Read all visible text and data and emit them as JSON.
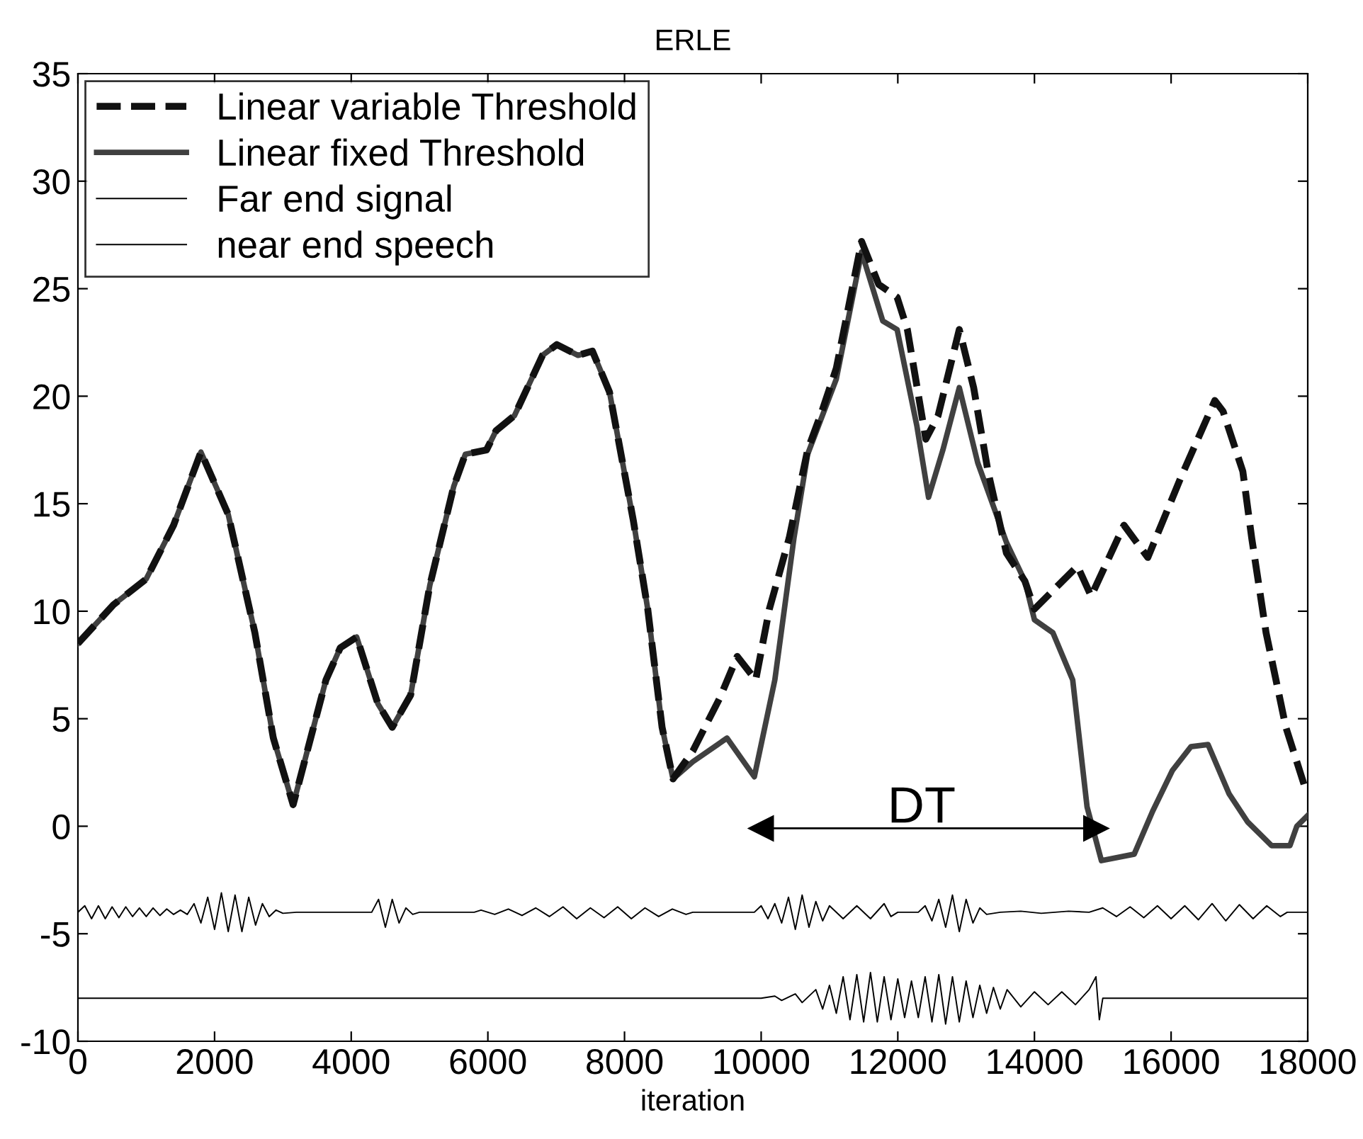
{
  "chart_data": {
    "type": "line",
    "title": "ERLE",
    "xlabel": "iteration",
    "xlim": [
      0,
      18000
    ],
    "ylim": [
      -10,
      35
    ],
    "xticks": [
      0,
      2000,
      4000,
      6000,
      8000,
      10000,
      12000,
      14000,
      16000,
      18000
    ],
    "yticks": [
      -10,
      -5,
      0,
      5,
      10,
      15,
      20,
      25,
      30,
      35
    ],
    "grid": false,
    "legend": "top left",
    "marker": "none",
    "annotations": [
      "DT"
    ],
    "series": [
      {
        "name": "Linear variable Threshold",
        "color": "#111111",
        "line_style": "dashed",
        "x": [
          0,
          520,
          1000,
          1400,
          1800,
          2200,
          2590,
          2860,
          3150,
          3630,
          3840,
          4080,
          4390,
          4600,
          4870,
          5150,
          5500,
          5670,
          5980,
          6120,
          6390,
          6800,
          7010,
          7320,
          7530,
          7780,
          8130,
          8340,
          8550,
          8710,
          9000,
          9400,
          9650,
          9920,
          10120,
          10410,
          10680,
          10890,
          11100,
          11470,
          11720,
          11990,
          12140,
          12410,
          12590,
          12900,
          13110,
          13320,
          13590,
          13860,
          14000,
          14630,
          14830,
          15310,
          15660,
          16140,
          16640,
          16760,
          17050,
          17180,
          17390,
          17680,
          17990
        ],
        "values": [
          8.5,
          10.3,
          11.5,
          14.0,
          17.4,
          14.5,
          9.0,
          4.1,
          1.0,
          6.8,
          8.3,
          8.8,
          5.7,
          4.6,
          6.1,
          11.2,
          15.8,
          17.3,
          17.5,
          18.4,
          19.1,
          21.9,
          22.4,
          21.9,
          22.1,
          20.2,
          14.2,
          10.1,
          4.6,
          2.2,
          3.5,
          6.0,
          7.9,
          6.8,
          10.1,
          13.4,
          17.5,
          19.3,
          21.3,
          27.2,
          25.2,
          24.6,
          23.1,
          18.0,
          19.1,
          23.1,
          20.4,
          16.5,
          12.7,
          11.4,
          10.1,
          12.1,
          10.7,
          14.0,
          12.5,
          16.2,
          19.8,
          19.3,
          16.5,
          13.4,
          9.0,
          4.6,
          1.5
        ]
      },
      {
        "name": "Linear fixed Threshold",
        "color": "#404040",
        "line_style": "solid",
        "x": [
          0,
          520,
          1000,
          1400,
          1800,
          2200,
          2590,
          2860,
          3150,
          3630,
          3840,
          4080,
          4390,
          4600,
          4870,
          5150,
          5500,
          5670,
          5980,
          6120,
          6390,
          6800,
          7010,
          7320,
          7530,
          7780,
          8130,
          8340,
          8550,
          8710,
          9000,
          9500,
          9900,
          10200,
          10480,
          10680,
          11100,
          11470,
          11780,
          11990,
          12280,
          12450,
          12660,
          12900,
          13170,
          13590,
          13860,
          14000,
          14270,
          14560,
          14770,
          14980,
          15460,
          15730,
          16020,
          16290,
          16540,
          16850,
          17120,
          17470,
          17740,
          17840,
          18000
        ],
        "values": [
          8.5,
          10.3,
          11.5,
          14.0,
          17.4,
          14.5,
          9.0,
          4.1,
          1.0,
          6.8,
          8.3,
          8.8,
          5.7,
          4.6,
          6.1,
          11.2,
          15.8,
          17.3,
          17.5,
          18.4,
          19.1,
          21.9,
          22.4,
          21.9,
          22.1,
          20.2,
          14.2,
          10.1,
          4.6,
          2.2,
          3.0,
          4.1,
          2.3,
          6.8,
          13.4,
          17.3,
          20.8,
          26.7,
          23.5,
          23.1,
          18.6,
          15.3,
          17.5,
          20.4,
          16.9,
          13.2,
          11.4,
          9.6,
          9.0,
          6.8,
          0.9,
          -1.6,
          -1.3,
          0.7,
          2.6,
          3.7,
          3.8,
          1.5,
          0.2,
          -0.9,
          -0.9,
          0.0,
          0.5
        ]
      },
      {
        "name": "Far end signal",
        "color": "#000000",
        "line_style": "solid",
        "x": [
          0,
          100,
          200,
          300,
          400,
          500,
          600,
          700,
          800,
          900,
          1000,
          1100,
          1200,
          1300,
          1400,
          1500,
          1600,
          1700,
          1800,
          1900,
          2000,
          2100,
          2200,
          2300,
          2400,
          2500,
          2600,
          2700,
          2800,
          2900,
          3000,
          3200,
          4300,
          4400,
          4500,
          4600,
          4700,
          4800,
          4900,
          5000,
          5800,
          5900,
          6100,
          6300,
          6500,
          6700,
          6900,
          7100,
          7300,
          7500,
          7700,
          7900,
          8100,
          8300,
          8500,
          8700,
          8900,
          9000,
          9900,
          10000,
          10100,
          10200,
          10300,
          10400,
          10500,
          10600,
          10700,
          10800,
          10900,
          11000,
          11200,
          11400,
          11600,
          11800,
          11900,
          12000,
          12300,
          12400,
          12500,
          12600,
          12700,
          12800,
          12900,
          13000,
          13100,
          13200,
          13300,
          13500,
          13800,
          14100,
          14500,
          14800,
          15000,
          15200,
          15400,
          15600,
          15800,
          16000,
          16200,
          16400,
          16600,
          16800,
          17000,
          17200,
          17400,
          17600,
          17700,
          18000
        ],
        "values": [
          -4,
          -3.7,
          -4.3,
          -3.7,
          -4.3,
          -3.75,
          -4.25,
          -3.75,
          -4.2,
          -3.8,
          -4.2,
          -3.8,
          -4.15,
          -3.85,
          -4.1,
          -3.9,
          -4.1,
          -3.6,
          -4.5,
          -3.3,
          -4.8,
          -3.1,
          -4.9,
          -3.2,
          -4.9,
          -3.3,
          -4.6,
          -3.6,
          -4.2,
          -3.9,
          -4.05,
          -4,
          -4,
          -3.4,
          -4.7,
          -3.4,
          -4.5,
          -3.8,
          -4.1,
          -4,
          -4,
          -3.9,
          -4.1,
          -3.85,
          -4.15,
          -3.8,
          -4.2,
          -3.75,
          -4.3,
          -3.8,
          -4.25,
          -3.75,
          -4.3,
          -3.8,
          -4.2,
          -3.85,
          -4.1,
          -4,
          -4,
          -3.7,
          -4.3,
          -3.6,
          -4.5,
          -3.3,
          -4.8,
          -3.2,
          -4.7,
          -3.5,
          -4.4,
          -3.7,
          -4.3,
          -3.7,
          -4.3,
          -3.6,
          -4.2,
          -4,
          -4,
          -3.7,
          -4.4,
          -3.4,
          -4.7,
          -3.2,
          -4.9,
          -3.4,
          -4.5,
          -3.8,
          -4.1,
          -4,
          -3.95,
          -4.05,
          -3.95,
          -4,
          -3.8,
          -4.2,
          -3.75,
          -4.25,
          -3.7,
          -4.3,
          -3.7,
          -4.35,
          -3.6,
          -4.4,
          -3.65,
          -4.3,
          -3.7,
          -4.2,
          -4,
          -4
        ]
      },
      {
        "name": "near end speech",
        "color": "#000000",
        "line_style": "solid",
        "x": [
          0,
          10000,
          10200,
          10300,
          10500,
          10600,
          10800,
          10900,
          11000,
          11100,
          11200,
          11300,
          11400,
          11500,
          11600,
          11700,
          11800,
          11900,
          12000,
          12100,
          12200,
          12300,
          12400,
          12500,
          12600,
          12700,
          12800,
          12900,
          13000,
          13100,
          13200,
          13300,
          13400,
          13500,
          13600,
          13800,
          14000,
          14200,
          14400,
          14600,
          14800,
          14900,
          14950,
          15000,
          18000
        ],
        "values": [
          -8,
          -8,
          -7.9,
          -8.1,
          -7.8,
          -8.2,
          -7.6,
          -8.5,
          -7.4,
          -8.7,
          -7.0,
          -9.0,
          -6.9,
          -9.1,
          -6.8,
          -9.1,
          -7.0,
          -9.0,
          -7.1,
          -8.9,
          -7.2,
          -8.9,
          -7.0,
          -9.1,
          -6.9,
          -9.2,
          -7.0,
          -9.1,
          -7.2,
          -8.9,
          -7.4,
          -8.7,
          -7.5,
          -8.5,
          -7.6,
          -8.4,
          -7.7,
          -8.3,
          -7.7,
          -8.3,
          -7.6,
          -7.0,
          -9.0,
          -8,
          -8
        ]
      },
      {
        "type": "line",
        "marker": "triangle",
        "color": "#000000",
        "line_style": "solid",
        "x": [
          10000,
          14900
        ],
        "values": [
          -0.1,
          -0.1
        ]
      }
    ]
  }
}
